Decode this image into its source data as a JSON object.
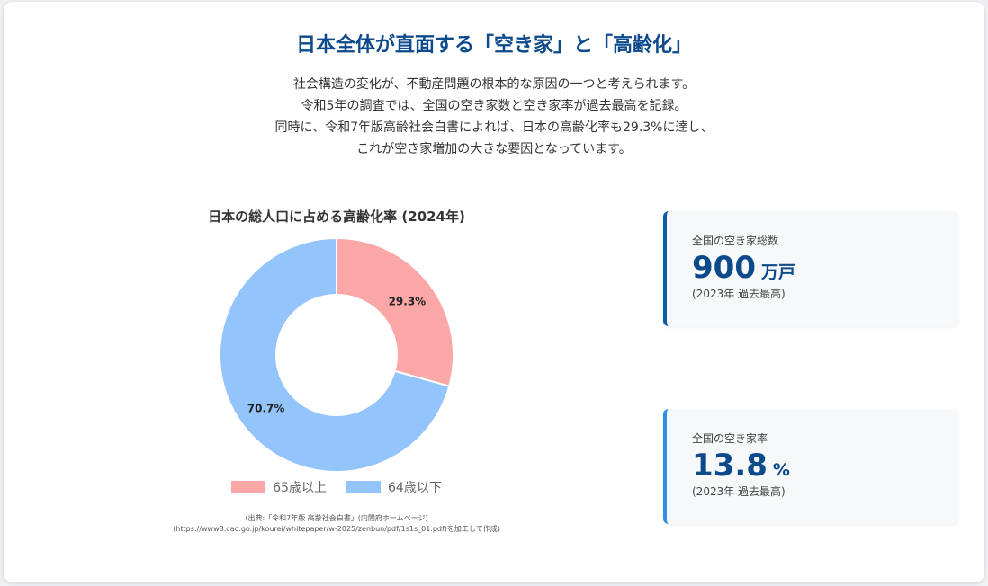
{
  "title": "日本全体が直面する「空き家」と「高齢化」",
  "intro": [
    "社会構造の変化が、不動産問題の根本的な原因の一つと考えられます。",
    "令和5年の調査では、全国の空き家数と空き家率が過去最高を記録。",
    "同時に、令和7年版高齢社会白書によれば、日本の高齢化率も29.3%に達し、",
    "これが空き家増加の大きな要因となっています。"
  ],
  "chart_data": {
    "type": "pie",
    "title": "日本の総人口に占める高齢化率 (2024年)",
    "categories": [
      "65歳以上",
      "64歳以下"
    ],
    "values": [
      29.3,
      70.7
    ],
    "labels": [
      "29.3%",
      "70.7%"
    ],
    "colors": [
      "#fba7a7",
      "#93c4fb"
    ],
    "legend_position": "bottom",
    "donut": true
  },
  "source": [
    "(出典:「令和7年版 高齢社会白書」(内閣府ホームページ)",
    "(https://www8.cao.go.jp/kourei/whitepaper/w-2025/zenbun/pdf/1s1s_01.pdf)を加工して作成)"
  ],
  "stats": [
    {
      "label": "全国の空き家総数",
      "value": "900",
      "unit": "万戸",
      "note": "(2023年 過去最高)",
      "accent": "#0d5aa7"
    },
    {
      "label": "全国の空き家率",
      "value": "13.8",
      "unit": "%",
      "note": "(2023年 過去最高)",
      "accent": "#2f8fe6"
    }
  ]
}
